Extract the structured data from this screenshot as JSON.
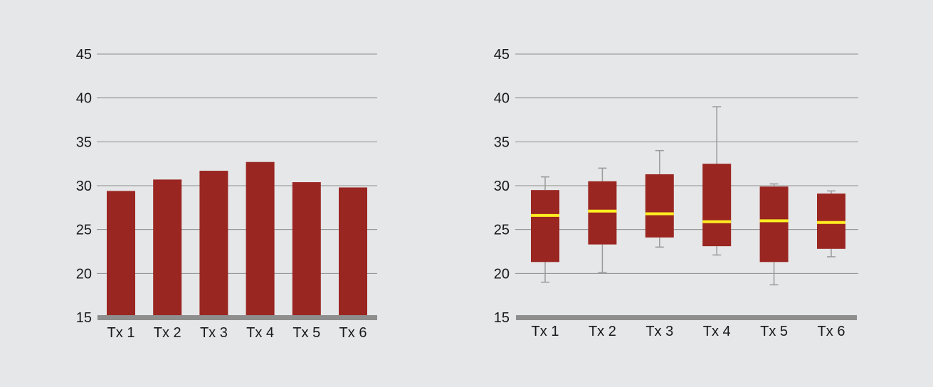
{
  "colors": {
    "background": "#e6e7e8",
    "bar": "#9a2622",
    "median": "#ffee22",
    "whisker": "#9a9a9a",
    "gridline": "#8c8c8c",
    "baseline": "#8e8e8e"
  },
  "chart_data": [
    {
      "type": "bar",
      "title": "",
      "xlabel": "",
      "ylabel": "",
      "categories": [
        "Tx 1",
        "Tx 2",
        "Tx 3",
        "Tx 4",
        "Tx 5",
        "Tx 6"
      ],
      "values": [
        29.4,
        30.7,
        31.7,
        32.7,
        30.4,
        29.8
      ],
      "ylim": [
        15,
        45
      ],
      "yticks": [
        15,
        20,
        25,
        30,
        35,
        40,
        45
      ],
      "grid": true
    },
    {
      "type": "box",
      "title": "",
      "xlabel": "",
      "ylabel": "",
      "categories": [
        "Tx 1",
        "Tx 2",
        "Tx 3",
        "Tx 4",
        "Tx 5",
        "Tx 6"
      ],
      "boxes": [
        {
          "min": 19.0,
          "q1": 21.3,
          "median": 26.6,
          "q3": 29.5,
          "max": 31.0
        },
        {
          "min": 20.1,
          "q1": 23.3,
          "median": 27.1,
          "q3": 30.5,
          "max": 32.0
        },
        {
          "min": 23.0,
          "q1": 24.1,
          "median": 26.8,
          "q3": 31.3,
          "max": 34.0
        },
        {
          "min": 22.1,
          "q1": 23.1,
          "median": 25.9,
          "q3": 32.5,
          "max": 39.0
        },
        {
          "min": 18.7,
          "q1": 21.3,
          "median": 26.0,
          "q3": 29.9,
          "max": 30.2
        },
        {
          "min": 21.9,
          "q1": 22.8,
          "median": 25.8,
          "q3": 29.1,
          "max": 29.4
        }
      ],
      "ylim": [
        15,
        45
      ],
      "yticks": [
        15,
        20,
        25,
        30,
        35,
        40,
        45
      ],
      "grid": true
    }
  ]
}
